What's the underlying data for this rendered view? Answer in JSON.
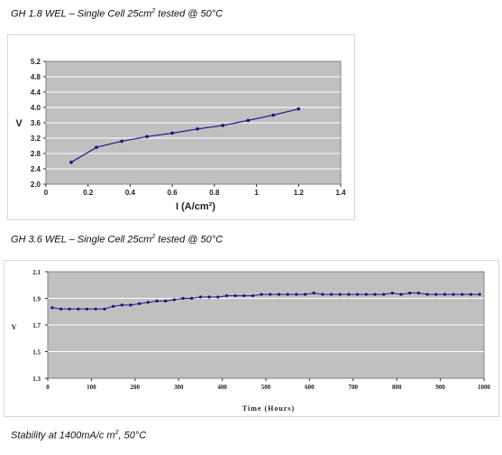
{
  "captions": {
    "chart1": {
      "main": "GH 1.8 WEL – Single Cell 25cm",
      "sup": "2",
      "tail": "  tested  @ 50°C"
    },
    "chart2": {
      "main": "GH 3.6 WEL – Single Cell 25cm",
      "sup": "2",
      "tail": "  tested  @ 50°C"
    },
    "footer": {
      "main": "Stability at 1400mA/c m",
      "sup": "2",
      "tail": ", 50°C"
    }
  },
  "colors": {
    "plot_bg": "#c0c0c0",
    "grid": "#ffffff",
    "line": "#1c1c8c",
    "marker": "#141478"
  },
  "chart_data": [
    {
      "type": "line",
      "title": "",
      "xlabel": "I (A/cm²)",
      "ylabel": "V",
      "xlim": [
        0,
        1.4
      ],
      "ylim": [
        2.0,
        5.2
      ],
      "x_ticks": [
        "0",
        "0.2",
        "0.4",
        "0.6",
        "0.8",
        "1",
        "1.2",
        "1.4"
      ],
      "y_ticks": [
        "2.0",
        "2.4",
        "2.8",
        "3.2",
        "3.6",
        "4.0",
        "4.4",
        "4.8",
        "5.2"
      ],
      "grid": "horizontal",
      "series": [
        {
          "x": [
            0.12,
            0.24,
            0.36,
            0.48,
            0.6,
            0.72,
            0.84,
            0.96,
            1.08,
            1.2
          ],
          "y": [
            2.57,
            2.96,
            3.12,
            3.24,
            3.33,
            3.44,
            3.53,
            3.66,
            3.8,
            3.96
          ]
        }
      ]
    },
    {
      "type": "line",
      "title": "",
      "xlabel": "Time (Hours)",
      "ylabel": "V",
      "xlim": [
        0,
        1000
      ],
      "ylim": [
        1.3,
        2.1
      ],
      "x_ticks": [
        "0",
        "100",
        "200",
        "300",
        "400",
        "500",
        "600",
        "700",
        "800",
        "900",
        "1000"
      ],
      "y_ticks": [
        "1.3",
        "1.5",
        "1.7",
        "1.9",
        "2.1"
      ],
      "grid": "horizontal",
      "series": [
        {
          "x": [
            10,
            30,
            50,
            70,
            90,
            110,
            130,
            150,
            170,
            190,
            210,
            230,
            250,
            270,
            290,
            310,
            330,
            350,
            370,
            390,
            410,
            430,
            450,
            470,
            490,
            510,
            530,
            550,
            570,
            590,
            610,
            630,
            650,
            670,
            690,
            710,
            730,
            750,
            770,
            790,
            810,
            830,
            850,
            870,
            890,
            910,
            930,
            950,
            970,
            990
          ],
          "y": [
            1.83,
            1.82,
            1.82,
            1.82,
            1.82,
            1.82,
            1.82,
            1.84,
            1.85,
            1.85,
            1.86,
            1.87,
            1.88,
            1.88,
            1.89,
            1.9,
            1.9,
            1.91,
            1.91,
            1.91,
            1.92,
            1.92,
            1.92,
            1.92,
            1.93,
            1.93,
            1.93,
            1.93,
            1.93,
            1.93,
            1.94,
            1.93,
            1.93,
            1.93,
            1.93,
            1.93,
            1.93,
            1.93,
            1.93,
            1.94,
            1.93,
            1.94,
            1.94,
            1.93,
            1.93,
            1.93,
            1.93,
            1.93,
            1.93,
            1.93
          ]
        }
      ]
    }
  ]
}
